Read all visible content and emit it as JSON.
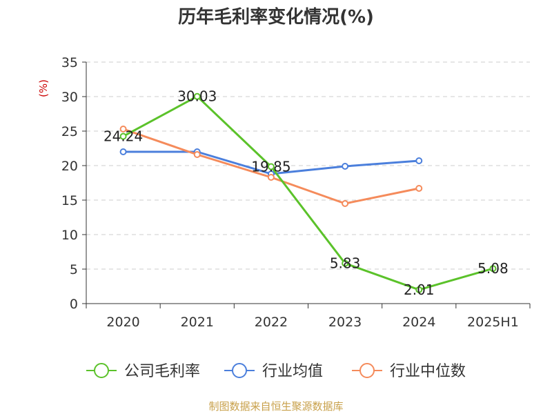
{
  "chart_data": {
    "type": "line",
    "title": "历年毛利率变化情况(%)",
    "ylabel": "(%)",
    "xlabel": "",
    "categories": [
      "2020",
      "2021",
      "2022",
      "2023",
      "2024",
      "2025H1"
    ],
    "ylim": [
      0,
      35
    ],
    "yticks": [
      0,
      5,
      10,
      15,
      20,
      25,
      30,
      35
    ],
    "grid": true,
    "legend_position": "bottom",
    "series": [
      {
        "name": "公司毛利率",
        "color": "#5bc22a",
        "values": [
          24.24,
          30.03,
          19.85,
          5.83,
          2.01,
          5.08
        ],
        "labels": [
          "24.24",
          "30.03",
          "19.85",
          "5.83",
          "2.01",
          "5.08"
        ]
      },
      {
        "name": "行业均值",
        "color": "#4b7fdc",
        "values": [
          22.0,
          22.0,
          18.8,
          19.9,
          20.7,
          null
        ]
      },
      {
        "name": "行业中位数",
        "color": "#f58b5b",
        "values": [
          25.3,
          21.6,
          18.3,
          14.5,
          16.7,
          null
        ]
      }
    ]
  },
  "source_text": "制图数据来自恒生聚源数据库"
}
